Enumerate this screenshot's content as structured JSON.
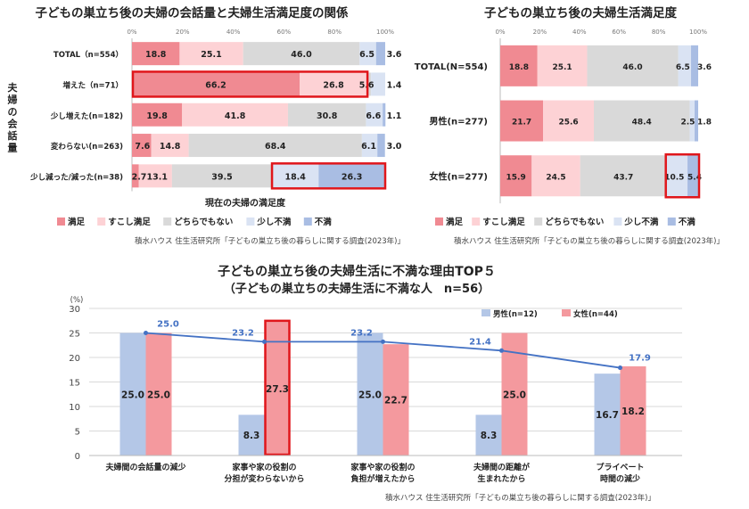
{
  "colors": {
    "satisfied": "#f08a92",
    "somewhat_satisfied": "#fdd2d5",
    "neutral": "#d9d9d9",
    "somewhat_dissatisfied": "#dae3f3",
    "dissatisfied": "#a9bde3",
    "male": "#b4c7e7",
    "female": "#f4999e",
    "line": "#4472c4",
    "highlight": "#e0161b"
  },
  "legend_labels": [
    "満足",
    "すこし満足",
    "どちらでもない",
    "少し不満",
    "不満"
  ],
  "source": "積水ハウス 住生活研究所「子どもの巣立ち後の暮らしに関する調査(2023年)」",
  "chart_data": [
    {
      "type": "bar",
      "orientation": "horizontal-stacked",
      "title": "子どもの巣立ち後の夫婦の会話量と夫婦生活満足度の関係",
      "ylabel": "夫婦の会話量",
      "xlabel": "現在の夫婦の満足度",
      "xlim": [
        0,
        100
      ],
      "ticks": [
        "0%",
        "20%",
        "40%",
        "60%",
        "80%",
        "100%"
      ],
      "categories": [
        "TOTAL（n=554）",
        "増えた（n=71）",
        "少し増えた(n=182)",
        "変わらない(n=263)",
        "少し減った/減った(n=38)"
      ],
      "series": [
        {
          "name": "満足",
          "values": [
            18.8,
            66.2,
            19.8,
            7.6,
            2.7
          ]
        },
        {
          "name": "すこし満足",
          "values": [
            25.1,
            26.8,
            41.8,
            14.8,
            13.1
          ]
        },
        {
          "name": "どちらでもない",
          "values": [
            46.0,
            1.4,
            30.8,
            68.4,
            39.5
          ]
        },
        {
          "name": "少し不満",
          "values": [
            6.5,
            5.6,
            6.6,
            6.1,
            18.4
          ]
        },
        {
          "name": "不満",
          "values": [
            3.6,
            0.0,
            1.1,
            3.0,
            26.3
          ]
        }
      ],
      "labels": [
        [
          "18.8",
          "25.1",
          "46.0",
          "6.5",
          "3.6"
        ],
        [
          "66.2",
          "26.8",
          "1.4",
          "5.6",
          ""
        ],
        [
          "19.8",
          "41.8",
          "30.8",
          "6.6",
          "1.1"
        ],
        [
          "7.6",
          "14.8",
          "68.4",
          "6.1",
          "3.0"
        ],
        [
          "2.7",
          "13.1",
          "39.5",
          "18.4",
          "26.3"
        ]
      ]
    },
    {
      "type": "bar",
      "orientation": "horizontal-stacked",
      "title": "子どもの巣立ち後の夫婦生活満足度",
      "xlim": [
        0,
        100
      ],
      "ticks": [
        "0%",
        "20%",
        "40%",
        "60%",
        "80%",
        "100%"
      ],
      "categories": [
        "TOTAL(N=554)",
        "男性(n=277)",
        "女性(n=277)"
      ],
      "series": [
        {
          "name": "満足",
          "values": [
            18.8,
            21.7,
            15.9
          ]
        },
        {
          "name": "すこし満足",
          "values": [
            25.1,
            25.6,
            24.5
          ]
        },
        {
          "name": "どちらでもない",
          "values": [
            46.0,
            48.4,
            43.7
          ]
        },
        {
          "name": "少し不満",
          "values": [
            6.5,
            2.5,
            10.5
          ]
        },
        {
          "name": "不満",
          "values": [
            3.6,
            1.8,
            5.4
          ]
        }
      ],
      "labels": [
        [
          "18.8",
          "25.1",
          "46.0",
          "6.5",
          "3.6"
        ],
        [
          "21.7",
          "25.6",
          "48.4",
          "2.5",
          "1.8"
        ],
        [
          "15.9",
          "24.5",
          "43.7",
          "10.5",
          "5.4"
        ]
      ]
    },
    {
      "type": "bar",
      "orientation": "vertical-grouped",
      "title": "子どもの巣立ち後の夫婦生活に不満な理由TOP５",
      "subtitle": "（子どもの巣立ちの夫婦生活に不満な人　n=56）",
      "yunit": "(%)",
      "ylim": [
        0,
        30
      ],
      "yticks": [
        "0",
        "5",
        "10",
        "15",
        "20",
        "25",
        "30"
      ],
      "categories": [
        "夫婦間の会話量の減少",
        "家事や家の役割の\n分担が変わらないから",
        "家事や家の役割の\n負担が増えたから",
        "夫婦間の距離が\n生まれたから",
        "プライベート\n時間の減少"
      ],
      "series": [
        {
          "name": "男性(n=12)",
          "values": [
            25.0,
            8.3,
            25.0,
            8.3,
            16.7
          ],
          "labels": [
            "25.0",
            "8.3",
            "25.0",
            "8.3",
            "16.7"
          ]
        },
        {
          "name": "女性(n=44)",
          "values": [
            25.0,
            27.3,
            22.7,
            25.0,
            18.2
          ],
          "labels": [
            "25.0",
            "27.3",
            "22.7",
            "25.0",
            "18.2"
          ]
        }
      ],
      "total_line": {
        "values": [
          25.0,
          23.2,
          23.2,
          21.4,
          17.9
        ],
        "labels": [
          "25.0",
          "23.2",
          "23.2",
          "21.4",
          "17.9"
        ]
      }
    }
  ]
}
